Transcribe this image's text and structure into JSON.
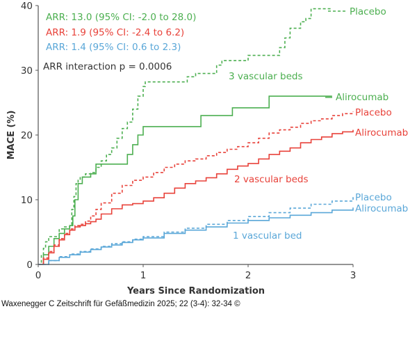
{
  "chart_data": {
    "type": "line",
    "xlabel": "Years Since Randomization",
    "ylabel": "MACE (%)",
    "xlim": [
      0,
      3
    ],
    "ylim": [
      0,
      40
    ],
    "xticks": [
      "0",
      "1",
      "2",
      "3"
    ],
    "yticks": [
      "0",
      "10",
      "20",
      "30",
      "40"
    ],
    "annotations": {
      "arr_green": "ARR: 13.0 (95% CI: -2.0 to 28.0)",
      "arr_red": "ARR: 1.9 (95% CI: -2.4 to 6.2)",
      "arr_blue": "ARR: 1.4 (95% CI: 0.6 to 2.3)",
      "interaction": "ARR interaction p = 0.0006",
      "label_3beds": "3 vascular beds",
      "label_2beds": "2 vascular beds",
      "label_1bed": "1 vascular bed"
    },
    "colors": {
      "green": "#4caf50",
      "red": "#e8423a",
      "blue": "#5aa7d8",
      "text": "#333333"
    },
    "series": [
      {
        "name": "Placebo",
        "group": "3 vascular beds",
        "color": "#4caf50",
        "dash": true,
        "x": [
          0,
          0.03,
          0.05,
          0.07,
          0.1,
          0.15,
          0.2,
          0.25,
          0.3,
          0.32,
          0.34,
          0.36,
          0.38,
          0.4,
          0.45,
          0.5,
          0.55,
          0.6,
          0.65,
          0.7,
          0.75,
          0.8,
          0.85,
          0.9,
          0.95,
          1.0,
          1.02,
          1.1,
          1.2,
          1.3,
          1.42,
          1.5,
          1.7,
          1.75,
          2.0,
          2.2,
          2.3,
          2.35,
          2.4,
          2.5,
          2.55,
          2.6,
          2.8
        ],
        "y": [
          0,
          1.5,
          2.5,
          3.5,
          4.3,
          4.3,
          5.5,
          5.8,
          6.0,
          8.5,
          10.5,
          12.5,
          13,
          13.5,
          14,
          14.2,
          15,
          16,
          17,
          18,
          19.5,
          21,
          22,
          24,
          26,
          27.5,
          28.2,
          28.2,
          28.2,
          28.2,
          29,
          29.5,
          30.8,
          31.5,
          32.3,
          32.3,
          33.5,
          35,
          36.5,
          37.5,
          38,
          39.5,
          39.5
        ]
      },
      {
        "name": "Alirocumab",
        "group": "3 vascular beds",
        "color": "#4caf50",
        "dash": false,
        "x": [
          0,
          0.05,
          0.1,
          0.15,
          0.2,
          0.25,
          0.3,
          0.33,
          0.35,
          0.38,
          0.42,
          0.5,
          0.55,
          0.7,
          0.85,
          0.9,
          0.95,
          1.0,
          1.55,
          1.85,
          2.2,
          2.8
        ],
        "y": [
          0,
          1.5,
          2.8,
          4,
          4.8,
          5.5,
          6.0,
          7.5,
          10,
          12.5,
          13.5,
          14,
          15.5,
          15.5,
          17,
          18.5,
          20,
          21.3,
          23,
          24.2,
          26,
          26
        ]
      },
      {
        "name": "Placebo",
        "group": "2 vascular beds",
        "color": "#e8423a",
        "dash": true,
        "x": [
          0,
          0.05,
          0.1,
          0.15,
          0.2,
          0.25,
          0.3,
          0.35,
          0.4,
          0.45,
          0.5,
          0.55,
          0.6,
          0.7,
          0.8,
          0.9,
          1.0,
          1.1,
          1.2,
          1.3,
          1.4,
          1.5,
          1.6,
          1.7,
          1.8,
          1.9,
          2.0,
          2.1,
          2.2,
          2.3,
          2.4,
          2.5,
          2.6,
          2.7,
          2.8,
          2.9,
          3.0
        ],
        "y": [
          0,
          1,
          2,
          3,
          4,
          4.8,
          5.5,
          6,
          6.2,
          6.7,
          7.5,
          8.5,
          9.5,
          11,
          12.2,
          13,
          13.5,
          14.2,
          15,
          15.5,
          16,
          16.3,
          16.8,
          17.3,
          17.8,
          18.2,
          18.8,
          19.5,
          20.3,
          20.8,
          21.2,
          21.8,
          22.2,
          22.5,
          23,
          23.3,
          23.6
        ]
      },
      {
        "name": "Alirocumab",
        "group": "2 vascular beds",
        "color": "#e8423a",
        "dash": false,
        "x": [
          0,
          0.05,
          0.1,
          0.15,
          0.2,
          0.25,
          0.3,
          0.35,
          0.4,
          0.45,
          0.5,
          0.55,
          0.6,
          0.7,
          0.8,
          0.9,
          1.0,
          1.1,
          1.2,
          1.3,
          1.4,
          1.5,
          1.6,
          1.7,
          1.8,
          1.9,
          2.0,
          2.1,
          2.2,
          2.3,
          2.4,
          2.5,
          2.6,
          2.7,
          2.8,
          2.9,
          3.0
        ],
        "y": [
          0,
          0.8,
          1.8,
          2.8,
          3.8,
          4.6,
          5.3,
          5.8,
          6.0,
          6.3,
          6.6,
          7.0,
          7.8,
          8.6,
          9.2,
          9.4,
          9.8,
          10.3,
          11.0,
          11.8,
          12.5,
          12.9,
          13.4,
          14.0,
          14.7,
          15.2,
          15.6,
          16.3,
          17.0,
          17.5,
          18.0,
          18.8,
          19.3,
          19.7,
          20.2,
          20.5,
          20.8
        ]
      },
      {
        "name": "Placebo",
        "group": "1 vascular bed",
        "color": "#5aa7d8",
        "dash": true,
        "x": [
          0,
          0.1,
          0.2,
          0.3,
          0.4,
          0.5,
          0.6,
          0.7,
          0.8,
          0.9,
          1.0,
          1.2,
          1.4,
          1.6,
          1.8,
          2.0,
          2.2,
          2.4,
          2.6,
          2.8,
          3.0
        ],
        "y": [
          0,
          0.6,
          1.2,
          1.6,
          2.0,
          2.4,
          2.8,
          3.2,
          3.5,
          3.9,
          4.3,
          5.0,
          5.6,
          6.2,
          6.8,
          7.4,
          8.0,
          8.7,
          9.3,
          9.8,
          10.4
        ]
      },
      {
        "name": "Alirocumab",
        "group": "1 vascular bed",
        "color": "#5aa7d8",
        "dash": false,
        "x": [
          0,
          0.1,
          0.2,
          0.3,
          0.4,
          0.5,
          0.6,
          0.7,
          0.8,
          0.9,
          1.0,
          1.2,
          1.4,
          1.6,
          1.8,
          2.0,
          2.2,
          2.4,
          2.6,
          2.8,
          3.0
        ],
        "y": [
          0,
          0.6,
          1.1,
          1.5,
          1.9,
          2.3,
          2.7,
          3.0,
          3.4,
          3.8,
          4.1,
          4.8,
          5.3,
          5.8,
          6.4,
          6.8,
          7.2,
          7.6,
          8.0,
          8.4,
          8.8
        ]
      }
    ]
  },
  "credit": "Waxenegger C Zeitschrift für Gefäßmedizin 2025; 22 (3-4): 32-34 ©"
}
